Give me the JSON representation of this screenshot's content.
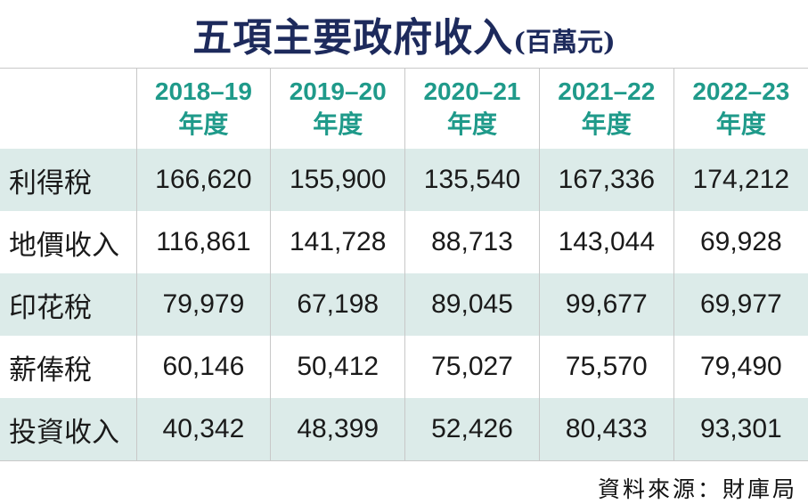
{
  "title": "五項主要政府收入",
  "title_unit": "(百萬元)",
  "source": "資料來源：財庫局",
  "chart_data": {
    "type": "table",
    "title": "五項主要政府收入(百萬元)",
    "columns": [
      {
        "year": "2018–19",
        "suffix": "年度"
      },
      {
        "year": "2019–20",
        "suffix": "年度"
      },
      {
        "year": "2020–21",
        "suffix": "年度"
      },
      {
        "year": "2021–22",
        "suffix": "年度"
      },
      {
        "year": "2022–23",
        "suffix": "年度"
      }
    ],
    "rows": [
      {
        "label": "利得稅",
        "values": [
          "166,620",
          "155,900",
          "135,540",
          "167,336",
          "174,212"
        ]
      },
      {
        "label": "地價收入",
        "values": [
          "116,861",
          "141,728",
          "88,713",
          "143,044",
          "69,928"
        ]
      },
      {
        "label": "印花稅",
        "values": [
          "79,979",
          "67,198",
          "89,045",
          "99,677",
          "69,977"
        ]
      },
      {
        "label": "薪俸稅",
        "values": [
          "60,146",
          "50,412",
          "75,027",
          "75,570",
          "79,490"
        ]
      },
      {
        "label": "投資收入",
        "values": [
          "40,342",
          "48,399",
          "52,426",
          "80,433",
          "93,301"
        ]
      }
    ]
  }
}
